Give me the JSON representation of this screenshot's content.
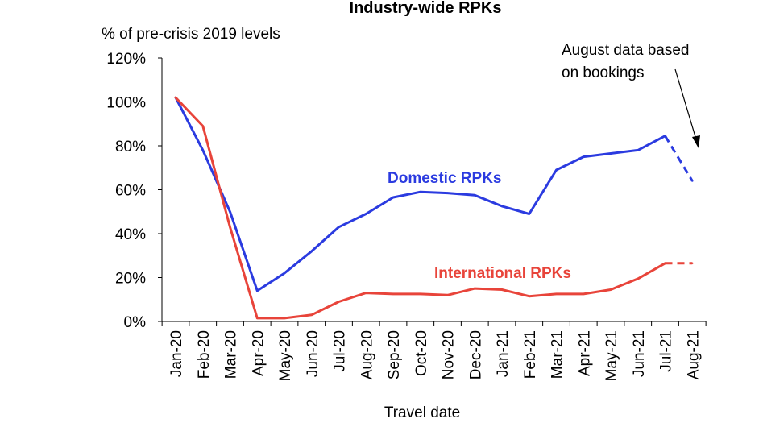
{
  "chart_data": {
    "type": "line",
    "title": "Industry-wide RPKs",
    "ylabel": "% of pre-crisis 2019 levels",
    "xlabel": "Travel date",
    "ylim": [
      0,
      120
    ],
    "yticks": [
      "0%",
      "20%",
      "40%",
      "60%",
      "80%",
      "100%",
      "120%"
    ],
    "ytick_values": [
      0,
      20,
      40,
      60,
      80,
      100,
      120
    ],
    "categories": [
      "Jan-20",
      "Feb-20",
      "Mar-20",
      "Apr-20",
      "May-20",
      "Jun-20",
      "Jul-20",
      "Aug-20",
      "Sep-20",
      "Oct-20",
      "Nov-20",
      "Dec-20",
      "Jan-21",
      "Feb-21",
      "Mar-21",
      "Apr-21",
      "May-21",
      "Jun-21",
      "Jul-21",
      "Aug-21"
    ],
    "grid": false,
    "series": [
      {
        "name": "Domestic RPKs",
        "color": "#2b3be0",
        "values": [
          102,
          78,
          50,
          14,
          22,
          32,
          43,
          49,
          56.5,
          59,
          58.5,
          57.5,
          52.5,
          49,
          69,
          75,
          76.5,
          78,
          84.5,
          64
        ]
      },
      {
        "name": "International RPKs",
        "color": "#e8443a",
        "values": [
          102,
          89,
          43,
          1.5,
          1.5,
          3,
          9,
          13,
          12.5,
          12.5,
          12,
          15,
          14.5,
          11.5,
          12.5,
          12.5,
          14.5,
          19.5,
          26.5,
          26.5
        ]
      }
    ],
    "projected_from_index": 18,
    "annotation": "August data based on bookings",
    "annotation_lines": [
      "August data based",
      "on bookings"
    ]
  }
}
